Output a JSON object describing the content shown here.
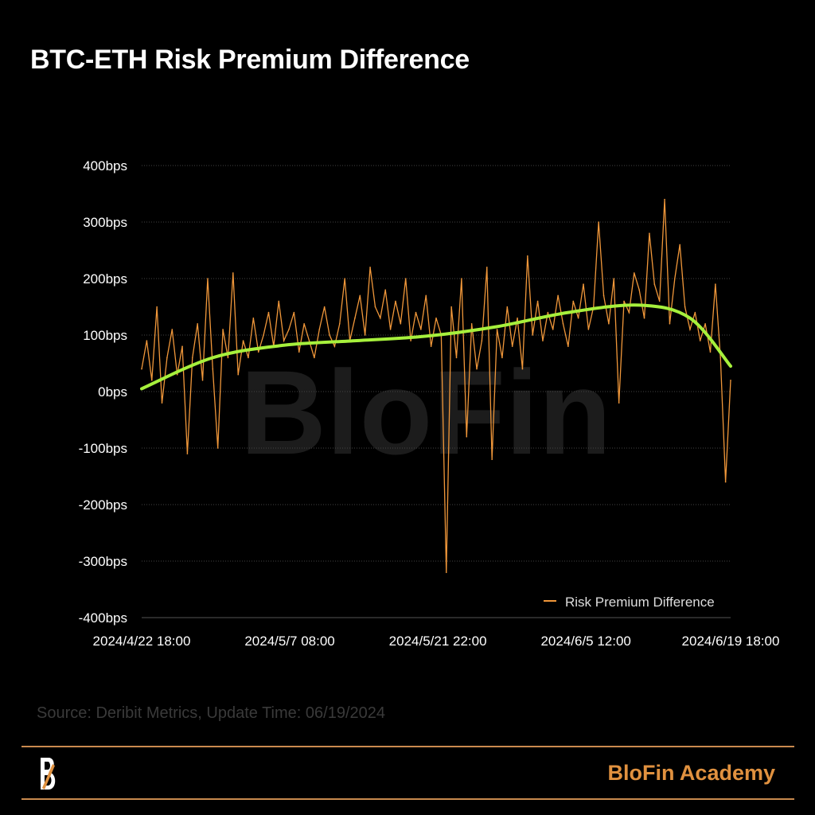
{
  "title": "BTC-ETH Risk Premium Difference",
  "source": "Source: Deribit Metrics, Update Time: 06/19/2024",
  "brand": "BloFin Academy",
  "watermark": "BloFin",
  "colors": {
    "series": "#f0973a",
    "trend": "#a6f03c",
    "brand": "#e0913f",
    "rule": "#c98a4e"
  },
  "icons": {
    "logo": "blofin-b-logo"
  },
  "chart_data": {
    "type": "line",
    "title": "BTC-ETH Risk Premium Difference",
    "ylim": [
      -400,
      400
    ],
    "yticks": [
      400,
      300,
      200,
      100,
      0,
      -100,
      -200,
      -300,
      -400
    ],
    "ytick_labels": [
      "400bps",
      "300bps",
      "200bps",
      "100bps",
      "0bps",
      "-100bps",
      "-200bps",
      "-300bps",
      "-400bps"
    ],
    "xlim": [
      "2024-04-22 18:00",
      "2024-06-19 18:00"
    ],
    "xtick_labels": [
      "2024/4/22 18:00",
      "2024/5/7 08:00",
      "2024/5/21 22:00",
      "2024/6/5 12:00",
      "2024/6/19 18:00"
    ],
    "xtick_values": [
      "2024-04-22 18:00",
      "2024-05-07 08:00",
      "2024-05-21 22:00",
      "2024-06-05 12:00",
      "2024-06-19 18:00"
    ],
    "grid": "horizontal dotted",
    "legend_placement": "bottom-right",
    "series": [
      {
        "name": "Risk Premium Difference",
        "values": [
          40,
          90,
          20,
          150,
          -20,
          60,
          110,
          30,
          80,
          -110,
          60,
          120,
          20,
          200,
          40,
          -100,
          110,
          60,
          210,
          30,
          90,
          60,
          130,
          70,
          100,
          140,
          80,
          160,
          90,
          110,
          140,
          70,
          120,
          90,
          60,
          110,
          150,
          100,
          80,
          120,
          200,
          90,
          130,
          170,
          100,
          220,
          150,
          130,
          180,
          110,
          160,
          120,
          200,
          90,
          140,
          110,
          170,
          80,
          130,
          100,
          -320,
          150,
          60,
          200,
          -80,
          120,
          40,
          90,
          220,
          -120,
          110,
          60,
          150,
          80,
          130,
          40,
          240,
          100,
          160,
          90,
          140,
          110,
          170,
          120,
          80,
          160,
          130,
          190,
          110,
          150,
          300,
          170,
          120,
          200,
          -20,
          160,
          140,
          210,
          180,
          130,
          280,
          190,
          160,
          340,
          120,
          200,
          260,
          150,
          110,
          140,
          90,
          120,
          70,
          190,
          60,
          -160,
          20
        ],
        "x_start": "2024-04-22 18:00",
        "x_step_hours": 12
      },
      {
        "x": [
          "2024-04-22 18:00",
          "2024-04-29 18:00",
          "2024-05-06 18:00",
          "2024-05-13 18:00",
          "2024-05-20 18:00",
          "2024-05-27 18:00",
          "2024-06-03 18:00",
          "2024-06-10 18:00",
          "2024-06-15 18:00",
          "2024-06-19 18:00"
        ],
        "values": [
          5,
          60,
          82,
          90,
          98,
          115,
          140,
          153,
          130,
          45
        ]
      }
    ]
  }
}
